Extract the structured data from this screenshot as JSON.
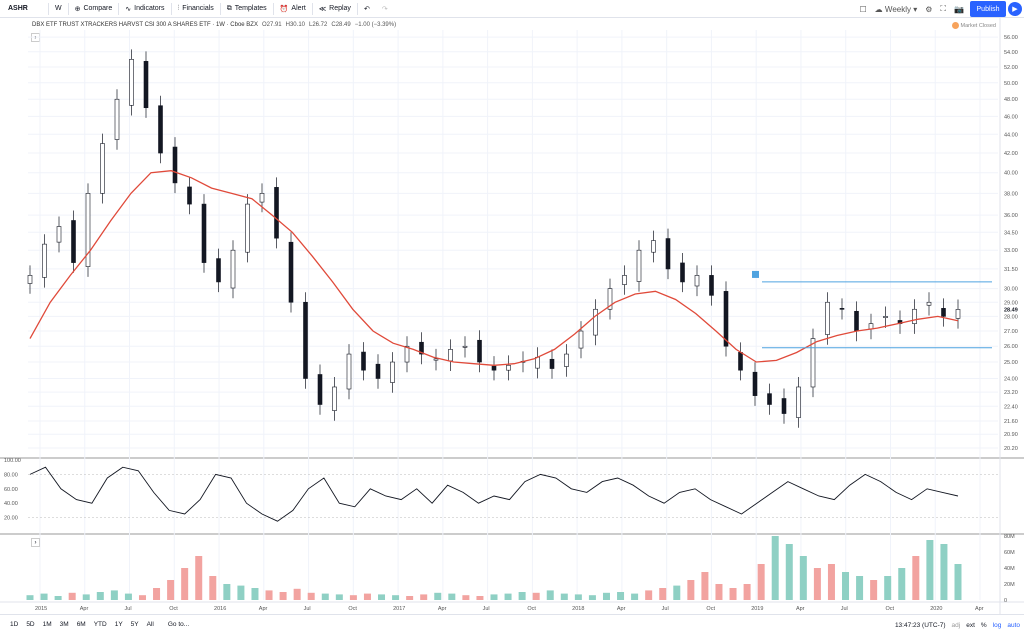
{
  "toolbar": {
    "symbol": "ASHR",
    "interval": "W",
    "compare": "Compare",
    "indicators": "Indicators",
    "financials": "Financials",
    "templates": "Templates",
    "alert": "Alert",
    "replay": "Replay",
    "layout": "Weekly",
    "publish": "Publish"
  },
  "legend": {
    "name": "DBX ETF TRUST XTRACKERS HARVST CSI 300 A SHARES ETF · 1W · Cboe BZX",
    "o": "O27.91",
    "h": "H30.10",
    "l": "L26.72",
    "c": "C28.49",
    "chg": "−1.00 (−3.39%)"
  },
  "market_status": "Market Closed",
  "chart_data": {
    "type": "candlestick",
    "price_axis": [
      "56.00",
      "54.00",
      "52.00",
      "50.00",
      "48.00",
      "46.00",
      "44.00",
      "42.00",
      "40.00",
      "38.00",
      "36.00",
      "34.50",
      "33.00",
      "31.50",
      "30.00",
      "29.00",
      "28.00",
      "27.00",
      "26.00",
      "25.00",
      "24.00",
      "23.20",
      "22.40",
      "21.60",
      "20.90",
      "20.20"
    ],
    "last_price": "28.49",
    "time_axis": [
      "2015",
      "Apr",
      "Jul",
      "Oct",
      "2016",
      "Apr",
      "Jul",
      "Oct",
      "2017",
      "Apr",
      "Jul",
      "Oct",
      "2018",
      "Apr",
      "Jul",
      "Oct",
      "2019",
      "Apr",
      "Jul",
      "Oct",
      "2020",
      "Apr"
    ],
    "close_series": [
      31.0,
      33.5,
      35.0,
      32.0,
      38.0,
      43.0,
      48.0,
      53.0,
      47.0,
      42.0,
      39.0,
      37.0,
      32.0,
      30.5,
      33.0,
      37.0,
      38.0,
      34.0,
      29.0,
      24.0,
      22.5,
      23.5,
      25.5,
      24.5,
      24.0,
      25.0,
      26.0,
      25.5,
      25.2,
      25.8,
      26.0,
      25.0,
      24.5,
      24.8,
      25.0,
      25.3,
      24.6,
      25.5,
      27.0,
      28.5,
      30.0,
      31.0,
      33.0,
      33.8,
      31.5,
      30.5,
      31.0,
      29.5,
      26.0,
      24.5,
      23.0,
      22.5,
      22.0,
      23.5,
      26.5,
      29.0,
      28.5,
      27.0,
      27.5,
      28.0,
      27.5,
      28.5,
      29.0,
      28.0,
      28.49
    ],
    "ma_series": [
      26.5,
      29.0,
      31.0,
      33.0,
      35.5,
      38.0,
      40.0,
      40.2,
      39.5,
      38.5,
      38.0,
      37.5,
      36.0,
      34.5,
      32.5,
      30.5,
      28.5,
      27.0,
      26.2,
      25.8,
      25.3,
      25.0,
      24.9,
      24.8,
      24.9,
      25.2,
      25.8,
      26.8,
      28.0,
      29.0,
      29.6,
      29.8,
      29.2,
      28.2,
      27.0,
      25.8,
      25.0,
      25.1,
      25.6,
      26.3,
      26.7,
      27.0,
      27.2,
      27.5,
      27.8,
      28.0,
      27.7
    ],
    "resistance": 30.5,
    "support": 25.9,
    "oscillator_axis": [
      "100.00",
      "80.00",
      "60.00",
      "40.00",
      "20.00"
    ],
    "oscillator_values": [
      80,
      90,
      60,
      45,
      40,
      75,
      90,
      85,
      55,
      30,
      25,
      45,
      80,
      75,
      40,
      25,
      15,
      30,
      60,
      75,
      40,
      35,
      60,
      50,
      45,
      60,
      40,
      65,
      55,
      40,
      50,
      45,
      70,
      80,
      75,
      60,
      55,
      70,
      75,
      65,
      50,
      40,
      55,
      60,
      45,
      35,
      25,
      40,
      55,
      70,
      60,
      50,
      45,
      65,
      80,
      70,
      55,
      45,
      60,
      55,
      50
    ],
    "volume_axis": [
      "80M",
      "60M",
      "40M",
      "20M",
      "0"
    ],
    "volume_values": [
      6,
      8,
      5,
      9,
      7,
      10,
      12,
      8,
      6,
      15,
      25,
      40,
      55,
      30,
      20,
      18,
      15,
      12,
      10,
      14,
      9,
      8,
      7,
      6,
      8,
      7,
      6,
      5,
      7,
      9,
      8,
      6,
      5,
      7,
      8,
      10,
      9,
      12,
      8,
      7,
      6,
      9,
      10,
      8,
      12,
      15,
      18,
      25,
      35,
      20,
      15,
      20,
      45,
      80,
      70,
      55,
      40,
      45,
      35,
      30,
      25,
      30,
      40,
      55,
      75,
      70,
      45
    ]
  },
  "bottom": {
    "ranges": [
      "1D",
      "5D",
      "1M",
      "3M",
      "6M",
      "YTD",
      "1Y",
      "5Y",
      "All"
    ],
    "goto": "Go to...",
    "time": "13:47:23 (UTC-7)",
    "ext": "ext",
    "pct": "%",
    "log": "log",
    "auto": "auto",
    "adj": "adj"
  }
}
